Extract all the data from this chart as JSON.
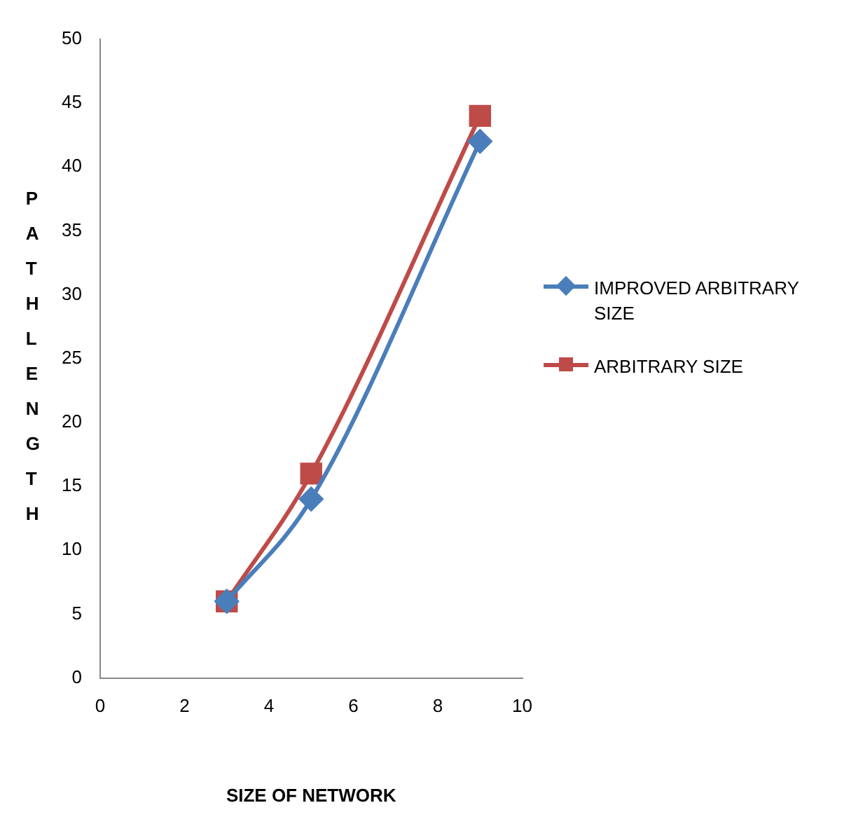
{
  "chart_data": {
    "type": "line",
    "xlabel": "SIZE OF NETWORK",
    "ylabel": "PATH LENGTH",
    "x": [
      3,
      5,
      9
    ],
    "series": [
      {
        "name": "IMPROVED ARBITRARY SIZE",
        "color": "#4a7ebb",
        "values": [
          6,
          14,
          42
        ],
        "marker": "diamond"
      },
      {
        "name": "ARBITRARY SIZE",
        "color": "#be4b48",
        "values": [
          6,
          16,
          44
        ],
        "marker": "square"
      }
    ],
    "xlim": [
      0,
      10
    ],
    "xticks": [
      0,
      2,
      4,
      6,
      8,
      10
    ],
    "ylim": [
      0,
      50
    ],
    "yticks": [
      0,
      5,
      10,
      15,
      20,
      25,
      30,
      35,
      40,
      45,
      50
    ],
    "grid": false,
    "legend": "right"
  }
}
